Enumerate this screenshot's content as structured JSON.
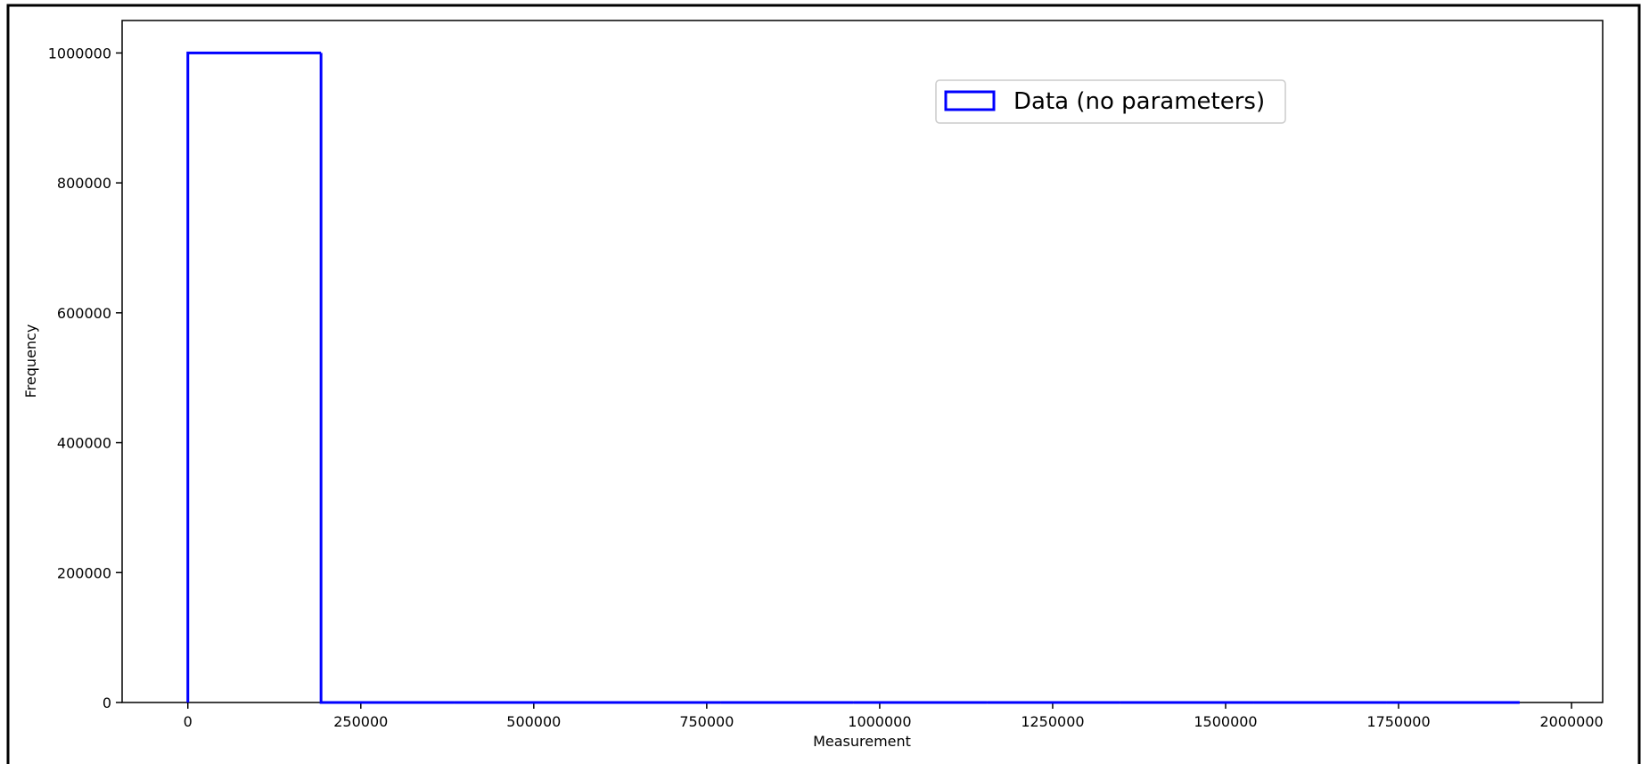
{
  "chart_data": {
    "type": "bar",
    "histtype": "step",
    "title": "",
    "xlabel": "Measurement",
    "ylabel": "Frequency",
    "xlim": [
      -95000,
      2045000
    ],
    "ylim": [
      0,
      1050000
    ],
    "xticks": [
      0,
      250000,
      500000,
      750000,
      1000000,
      1250000,
      1500000,
      1750000,
      2000000
    ],
    "xtick_labels": [
      "0",
      "250000",
      "500000",
      "750000",
      "1000000",
      "1250000",
      "1500000",
      "1750000",
      "2000000"
    ],
    "yticks": [
      0,
      200000,
      400000,
      600000,
      800000,
      1000000
    ],
    "ytick_labels": [
      "0",
      "200000",
      "400000",
      "600000",
      "800000",
      "1000000"
    ],
    "bin_edges": [
      0,
      192500,
      385000,
      577500,
      770000,
      962500,
      1155000,
      1347500,
      1540000,
      1732500,
      1925000
    ],
    "counts": [
      1000000,
      0,
      0,
      0,
      0,
      0,
      0,
      0,
      0,
      0
    ],
    "series": [
      {
        "name": "Data (no parameters)",
        "color": "#0000ff"
      }
    ],
    "legend": {
      "position": "upper-right",
      "entries": [
        "Data (no parameters)"
      ]
    },
    "grid": false
  }
}
